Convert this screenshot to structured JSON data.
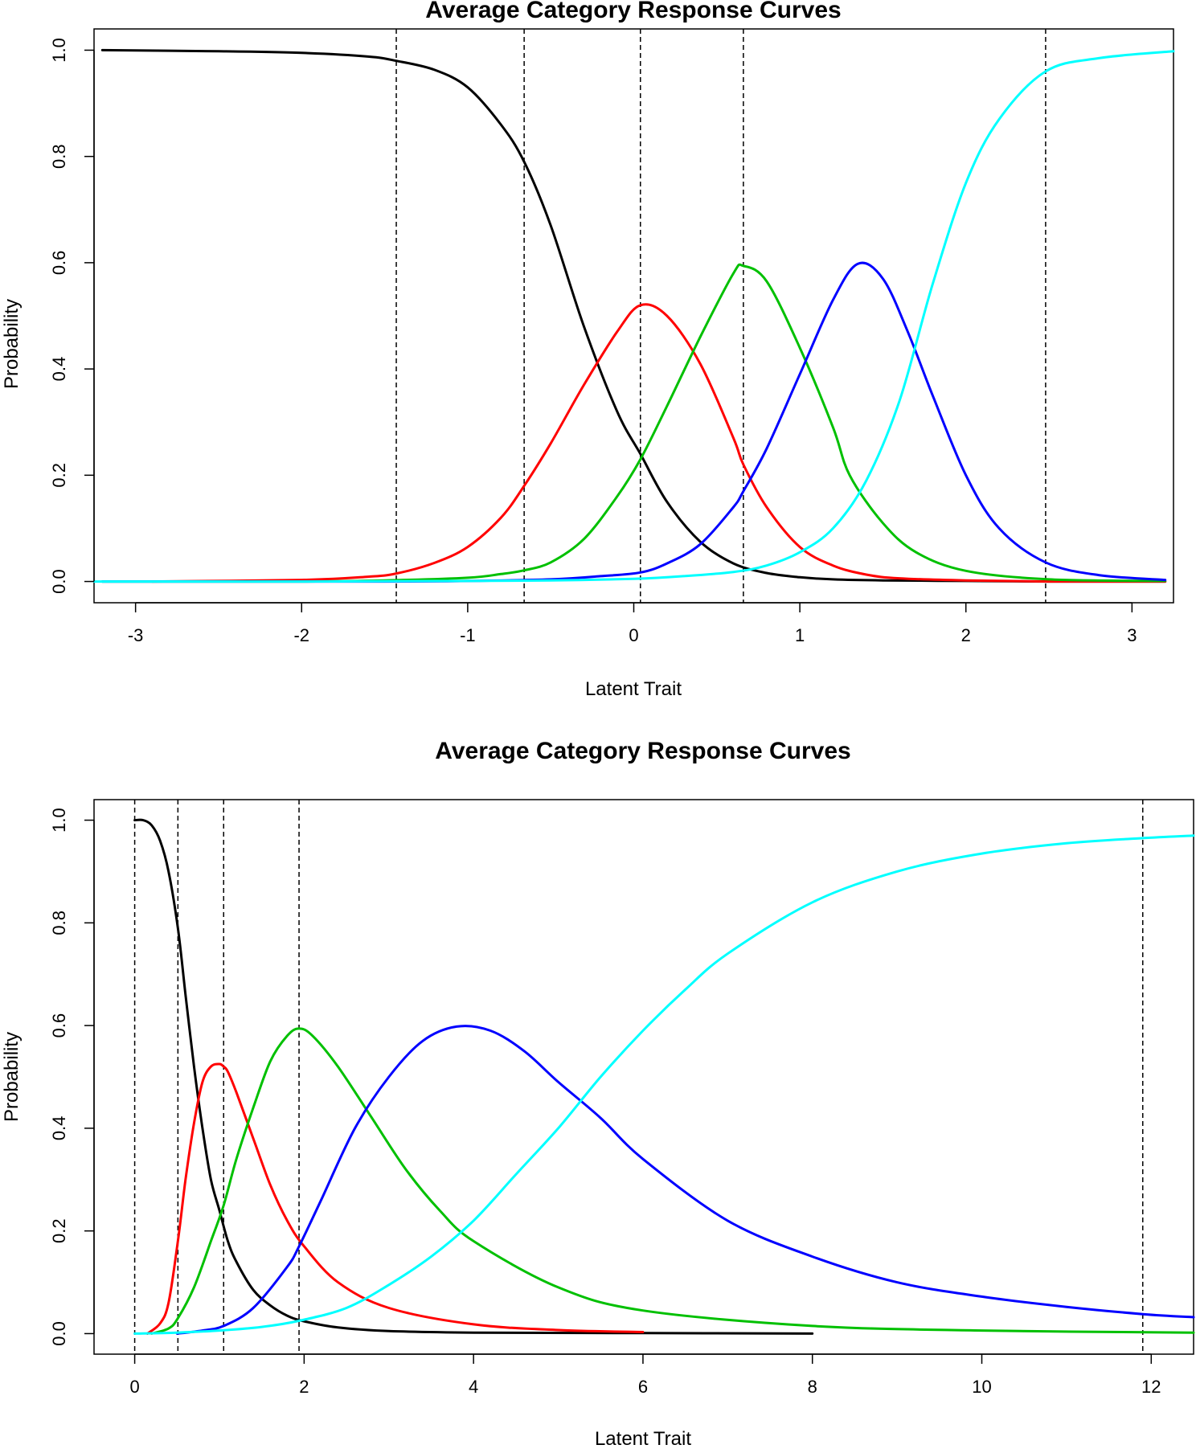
{
  "chart_data": [
    {
      "type": "line",
      "title": "Average Category Response Curves",
      "xlabel": "Latent Trait",
      "ylabel": "Probability",
      "xlim": [
        -3.25,
        3.25
      ],
      "ylim": [
        -0.04,
        1.04
      ],
      "xticks": [
        -3,
        -2,
        -1,
        0,
        1,
        2,
        3
      ],
      "xtick_labels": [
        "-3",
        "-2",
        "-1",
        "0",
        "1",
        "2",
        "3"
      ],
      "yticks": [
        0,
        0.2,
        0.4,
        0.6,
        0.8,
        1.0
      ],
      "ytick_labels": [
        "0.0",
        "0.2",
        "0.4",
        "0.6",
        "0.8",
        "1.0"
      ],
      "grid": false,
      "reference_lines_x": [
        -1.43,
        -0.66,
        0.04,
        0.66,
        2.48
      ],
      "series": [
        {
          "color": "#000000",
          "x": [
            -3.2,
            -2.5,
            -2.0,
            -1.6,
            -1.43,
            -1.2,
            -1.0,
            -0.8,
            -0.66,
            -0.5,
            -0.3,
            -0.1,
            0.04,
            0.2,
            0.4,
            0.6,
            0.8,
            1.0,
            1.2,
            1.5,
            2.0,
            2.5,
            3.2
          ],
          "y": [
            1.0,
            0.998,
            0.995,
            0.988,
            0.98,
            0.963,
            0.93,
            0.86,
            0.79,
            0.67,
            0.48,
            0.32,
            0.24,
            0.15,
            0.075,
            0.034,
            0.016,
            0.008,
            0.004,
            0.002,
            0.001,
            0.0,
            0.0
          ]
        },
        {
          "color": "#ff0000",
          "x": [
            -2.9,
            -2.0,
            -1.6,
            -1.43,
            -1.2,
            -1.0,
            -0.8,
            -0.66,
            -0.5,
            -0.3,
            -0.1,
            0.04,
            0.2,
            0.4,
            0.6,
            0.66,
            0.8,
            1.0,
            1.2,
            1.4,
            1.6,
            2.0,
            2.5,
            3.2
          ],
          "y": [
            0.0,
            0.003,
            0.009,
            0.015,
            0.035,
            0.065,
            0.12,
            0.18,
            0.26,
            0.37,
            0.47,
            0.52,
            0.5,
            0.41,
            0.27,
            0.22,
            0.14,
            0.065,
            0.03,
            0.013,
            0.006,
            0.002,
            0.0,
            0.0
          ]
        },
        {
          "color": "#00c000",
          "x": [
            -3.2,
            -2.0,
            -1.5,
            -1.0,
            -0.8,
            -0.66,
            -0.5,
            -0.3,
            -0.1,
            0.04,
            0.2,
            0.4,
            0.6,
            0.66,
            0.8,
            1.0,
            1.2,
            1.3,
            1.5,
            1.7,
            2.0,
            2.5,
            3.2
          ],
          "y": [
            0.0,
            0.0,
            0.002,
            0.007,
            0.014,
            0.021,
            0.036,
            0.08,
            0.16,
            0.23,
            0.33,
            0.46,
            0.58,
            0.594,
            0.565,
            0.44,
            0.29,
            0.2,
            0.11,
            0.055,
            0.02,
            0.004,
            0.001
          ]
        },
        {
          "color": "#0000ff",
          "x": [
            -3.2,
            -1.5,
            -1.0,
            -0.5,
            -0.2,
            0.04,
            0.2,
            0.4,
            0.6,
            0.66,
            0.8,
            1.0,
            1.2,
            1.35,
            1.5,
            1.65,
            1.8,
            2.0,
            2.2,
            2.48,
            2.8,
            3.2
          ],
          "y": [
            0.0,
            0.0,
            0.001,
            0.004,
            0.01,
            0.017,
            0.034,
            0.07,
            0.14,
            0.17,
            0.25,
            0.39,
            0.53,
            0.598,
            0.57,
            0.47,
            0.35,
            0.2,
            0.1,
            0.036,
            0.012,
            0.003
          ]
        },
        {
          "color": "#00ffff",
          "x": [
            -3.25,
            -2.0,
            -1.0,
            -0.5,
            0.0,
            0.3,
            0.6,
            0.8,
            1.0,
            1.2,
            1.4,
            1.6,
            1.8,
            2.0,
            2.2,
            2.48,
            2.8,
            3.25
          ],
          "y": [
            0.0,
            0.0,
            0.001,
            0.002,
            0.005,
            0.01,
            0.018,
            0.03,
            0.055,
            0.1,
            0.19,
            0.34,
            0.56,
            0.75,
            0.87,
            0.96,
            0.985,
            0.998
          ]
        }
      ]
    },
    {
      "type": "line",
      "title": "Average Category Response Curves",
      "xlabel": "Latent Trait",
      "ylabel": "Probability",
      "xlim": [
        -0.48,
        12.5
      ],
      "ylim": [
        -0.04,
        1.04
      ],
      "xticks": [
        0,
        2,
        4,
        6,
        8,
        10,
        12
      ],
      "xtick_labels": [
        "0",
        "2",
        "4",
        "6",
        "8",
        "10",
        "12"
      ],
      "yticks": [
        0,
        0.2,
        0.4,
        0.6,
        0.8,
        1.0
      ],
      "ytick_labels": [
        "0.0",
        "0.2",
        "0.4",
        "0.6",
        "0.8",
        "1.0"
      ],
      "grid": false,
      "reference_lines_x": [
        0.0,
        0.51,
        1.05,
        1.94,
        11.9
      ],
      "series": [
        {
          "color": "#000000",
          "x": [
            0.0,
            0.1,
            0.2,
            0.3,
            0.4,
            0.51,
            0.6,
            0.7,
            0.8,
            0.9,
            1.0,
            1.1,
            1.2,
            1.4,
            1.6,
            1.8,
            2.0,
            2.4,
            3.0,
            4.0,
            6.0,
            8.0
          ],
          "y": [
            1.0,
            1.0,
            0.99,
            0.96,
            0.9,
            0.79,
            0.66,
            0.52,
            0.4,
            0.3,
            0.24,
            0.18,
            0.14,
            0.085,
            0.055,
            0.035,
            0.024,
            0.012,
            0.005,
            0.002,
            0.001,
            0.0
          ]
        },
        {
          "color": "#ff0000",
          "x": [
            0.15,
            0.3,
            0.4,
            0.51,
            0.6,
            0.7,
            0.8,
            0.9,
            1.0,
            1.05,
            1.1,
            1.2,
            1.4,
            1.6,
            1.8,
            2.0,
            2.4,
            3.0,
            4.0,
            5.0,
            6.0
          ],
          "y": [
            0.0,
            0.02,
            0.06,
            0.18,
            0.3,
            0.41,
            0.49,
            0.52,
            0.525,
            0.52,
            0.51,
            0.47,
            0.38,
            0.29,
            0.22,
            0.17,
            0.1,
            0.05,
            0.018,
            0.007,
            0.003
          ]
        },
        {
          "color": "#00c000",
          "x": [
            0.2,
            0.4,
            0.51,
            0.7,
            0.9,
            1.05,
            1.2,
            1.4,
            1.6,
            1.8,
            1.94,
            2.1,
            2.4,
            2.8,
            3.2,
            3.6,
            4.0,
            5.0,
            6.0,
            8.0,
            10.0,
            12.5
          ],
          "y": [
            0.0,
            0.01,
            0.03,
            0.09,
            0.18,
            0.25,
            0.34,
            0.44,
            0.53,
            0.58,
            0.594,
            0.58,
            0.52,
            0.42,
            0.32,
            0.24,
            0.18,
            0.09,
            0.045,
            0.015,
            0.006,
            0.002
          ]
        },
        {
          "color": "#0000ff",
          "x": [
            0.5,
            0.8,
            1.05,
            1.4,
            1.8,
            1.94,
            2.2,
            2.6,
            3.0,
            3.4,
            3.8,
            4.2,
            4.6,
            5.0,
            5.5,
            6.0,
            7.0,
            8.0,
            9.0,
            10.0,
            11.0,
            11.9,
            12.5
          ],
          "y": [
            0.0,
            0.006,
            0.015,
            0.05,
            0.13,
            0.17,
            0.26,
            0.4,
            0.5,
            0.57,
            0.598,
            0.59,
            0.55,
            0.49,
            0.42,
            0.34,
            0.22,
            0.15,
            0.1,
            0.072,
            0.052,
            0.038,
            0.032
          ]
        },
        {
          "color": "#00ffff",
          "x": [
            0.0,
            0.5,
            1.0,
            1.5,
            1.94,
            2.5,
            3.0,
            3.5,
            4.0,
            4.5,
            5.0,
            5.5,
            6.0,
            6.5,
            7.0,
            8.0,
            9.0,
            10.0,
            11.0,
            11.9,
            12.5
          ],
          "y": [
            0.0,
            0.002,
            0.006,
            0.013,
            0.025,
            0.05,
            0.095,
            0.15,
            0.22,
            0.31,
            0.4,
            0.5,
            0.59,
            0.67,
            0.74,
            0.84,
            0.9,
            0.935,
            0.955,
            0.965,
            0.97
          ]
        }
      ]
    }
  ]
}
